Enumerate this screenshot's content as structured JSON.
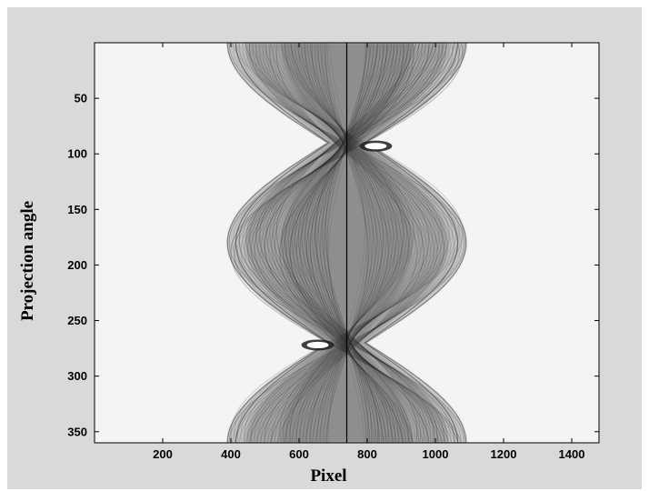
{
  "chart_data": {
    "type": "heatmap",
    "description_kind": "sinogram",
    "xlabel": "Pixel",
    "ylabel": "Projection angle",
    "xlim": [
      0,
      1480
    ],
    "ylim": [
      0,
      360
    ],
    "y_inverted": true,
    "x_ticks": [
      200,
      400,
      600,
      800,
      1000,
      1200,
      1400
    ],
    "y_ticks": [
      50,
      100,
      150,
      200,
      250,
      300,
      350
    ],
    "x_tick_labels": [
      "200",
      "400",
      "600",
      "800",
      "1000",
      "1200",
      "1400"
    ],
    "y_tick_labels": [
      "50",
      "100",
      "150",
      "200",
      "250",
      "300",
      "350"
    ],
    "vertical_line_x": 740,
    "colormap": "gray-inverted",
    "background_color": "#f4f4f4",
    "figure_background": "#d9d9d9",
    "band": {
      "center_x": 740,
      "amplitude": 390,
      "half_width_max": 350,
      "half_width_min": 55,
      "period": 360,
      "phase_deg": 0,
      "narrow_angles": [
        92,
        272
      ]
    },
    "bright_spots": [
      {
        "x": 825,
        "y": 93
      },
      {
        "x": 655,
        "y": 272
      }
    ],
    "grid": false,
    "legend": "none"
  }
}
